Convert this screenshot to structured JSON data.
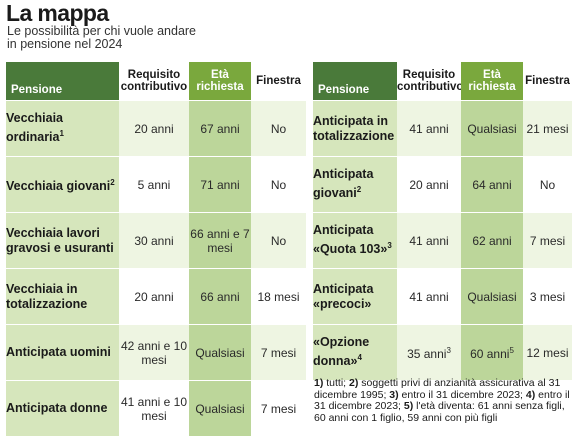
{
  "title": "La mappa",
  "subtitle": "Le possibilità per chi vuole andare in pensione nel 2024",
  "headers": {
    "pension": "Pensione",
    "requirement": "Requisito contributivo",
    "age": "Età richiesta",
    "window": "Finestra"
  },
  "left_rows": [
    {
      "name": "Vecchiaia ordinaria",
      "sup": "1",
      "req": "20 anni",
      "age": "67 anni",
      "window": "No"
    },
    {
      "name": "Vecchiaia giovani",
      "sup": "2",
      "req": "5 anni",
      "age": "71 anni",
      "window": "No"
    },
    {
      "name": "Vecchiaia lavori gravosi e usuranti",
      "sup": "",
      "req": "30 anni",
      "age": "66 anni e 7 mesi",
      "window": "No"
    },
    {
      "name": "Vecchiaia in totalizzazione",
      "sup": "",
      "req": "20 anni",
      "age": "66 anni",
      "window": "18 mesi"
    },
    {
      "name": "Anticipata uomini",
      "sup": "",
      "req": "42 anni e 10 mesi",
      "age": "Qualsiasi",
      "window": "7 mesi"
    },
    {
      "name": "Anticipata donne",
      "sup": "",
      "req": "41 anni e 10 mesi",
      "age": "Qualsiasi",
      "window": "7 mesi"
    }
  ],
  "right_rows": [
    {
      "name": "Anticipata in totalizzazione",
      "sup": "",
      "req": "41 anni",
      "req_sup": "",
      "age": "Qualsiasi",
      "age_sup": "",
      "window": "21 mesi"
    },
    {
      "name": "Anticipata giovani",
      "sup": "2",
      "req": "20 anni",
      "req_sup": "",
      "age": "64 anni",
      "age_sup": "",
      "window": "No"
    },
    {
      "name": "Anticipata «Quota 103»",
      "sup": "3",
      "req": "41 anni",
      "req_sup": "",
      "age": "62 anni",
      "age_sup": "",
      "window": "7 mesi"
    },
    {
      "name": "Anticipata «precoci»",
      "sup": "",
      "req": "41 anni",
      "req_sup": "",
      "age": "Qualsiasi",
      "age_sup": "",
      "window": "3 mesi"
    },
    {
      "name": "«Opzione donna»",
      "sup": "4",
      "req": "35 anni",
      "req_sup": "3",
      "age": "60 anni",
      "age_sup": "5",
      "window": "12 mesi"
    }
  ],
  "notes": [
    {
      "num": "1)",
      "text": " tutti; "
    },
    {
      "num": "2)",
      "text": " soggetti privi di anzianità assicurativa al 31 dicembre 1995; "
    },
    {
      "num": "3)",
      "text": " entro il 31 dicembre 2023; "
    },
    {
      "num": "4)",
      "text": " entro il 31 dicembre 2023; "
    },
    {
      "num": "5)",
      "text": " l'età diventa: 61 anni senza figli, 60 anni con 1 figlio, 59 anni con più figli"
    }
  ],
  "colors": {
    "header_dark": "#4a7a3a",
    "header_age": "#7aa83d",
    "pension_cell": "#d6e6bc",
    "age_cell": "#bcd69a",
    "band": "#eef5e2"
  }
}
